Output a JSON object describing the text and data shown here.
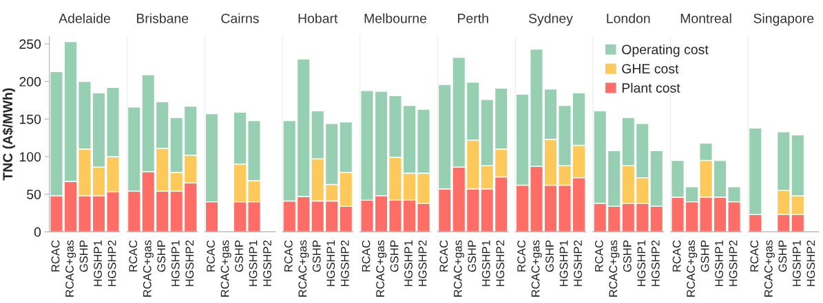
{
  "chart_data": [
    {
      "type": "bar",
      "stacked": true,
      "title": "Adelaide",
      "ylabel": "TNC (A$/MWh)",
      "categories": [
        "RCAC",
        "RCAC+gas",
        "GSHP",
        "HGSHP1",
        "HGSHP2"
      ],
      "ylim": [
        0,
        260
      ],
      "yticks": [
        0,
        50,
        100,
        150,
        200,
        250
      ],
      "series": [
        {
          "color": "#fe6e67",
          "values": [
            48,
            67,
            48,
            48,
            53
          ]
        },
        {
          "color": "#fec95b",
          "values": [
            null,
            null,
            62,
            38,
            47
          ]
        },
        {
          "color": "#97cfb3",
          "values": [
            165,
            186,
            90,
            99,
            92
          ]
        }
      ]
    },
    {
      "type": "bar",
      "stacked": true,
      "title": "Brisbane",
      "tick_labels": "x",
      "categories": [
        "RCAC",
        "RCAC+gas",
        "GSHP",
        "HGSHP1",
        "HGSHP2"
      ],
      "ylim": [
        0,
        260
      ],
      "yticks": [
        0,
        50,
        100,
        150,
        200,
        250
      ],
      "series": [
        {
          "color": "#fe6e67",
          "values": [
            54,
            80,
            54,
            54,
            65
          ]
        },
        {
          "color": "#fec95b",
          "values": [
            null,
            null,
            57,
            25,
            37
          ]
        },
        {
          "color": "#97cfb3",
          "values": [
            112,
            129,
            62,
            73,
            65
          ]
        }
      ]
    },
    {
      "type": "bar",
      "stacked": true,
      "title": "Cairns",
      "tick_labels": "x",
      "categories": [
        "RCAC",
        "RCAC+gas",
        "GSHP",
        "HGSHP1",
        "HGSHP2"
      ],
      "ylim": [
        0,
        260
      ],
      "yticks": [
        0,
        50,
        100,
        150,
        200,
        250
      ],
      "series": [
        {
          "color": "#fe6e67",
          "values": [
            40,
            null,
            40,
            40,
            null
          ]
        },
        {
          "color": "#fec95b",
          "values": [
            null,
            null,
            50,
            28,
            null
          ]
        },
        {
          "color": "#97cfb3",
          "values": [
            117,
            null,
            69,
            80,
            null
          ]
        }
      ]
    },
    {
      "type": "bar",
      "stacked": true,
      "title": "Hobart",
      "tick_labels": "x",
      "categories": [
        "RCAC",
        "RCAC+gas",
        "GSHP",
        "HGSHP1",
        "HGSHP2"
      ],
      "ylim": [
        0,
        260
      ],
      "yticks": [
        0,
        50,
        100,
        150,
        200,
        250
      ],
      "series": [
        {
          "color": "#fe6e67",
          "values": [
            41,
            47,
            41,
            41,
            34
          ]
        },
        {
          "color": "#fec95b",
          "values": [
            null,
            null,
            56,
            22,
            45
          ]
        },
        {
          "color": "#97cfb3",
          "values": [
            107,
            183,
            64,
            81,
            67
          ]
        }
      ]
    },
    {
      "type": "bar",
      "stacked": true,
      "title": "Melbourne",
      "tick_labels": "x",
      "categories": [
        "RCAC",
        "RCAC+gas",
        "GSHP",
        "HGSHP1",
        "HGSHP2"
      ],
      "ylim": [
        0,
        260
      ],
      "yticks": [
        0,
        50,
        100,
        150,
        200,
        250
      ],
      "series": [
        {
          "color": "#fe6e67",
          "values": [
            42,
            48,
            42,
            42,
            38
          ]
        },
        {
          "color": "#fec95b",
          "values": [
            null,
            null,
            57,
            36,
            40
          ]
        },
        {
          "color": "#97cfb3",
          "values": [
            146,
            139,
            82,
            90,
            85
          ]
        }
      ]
    },
    {
      "type": "bar",
      "stacked": true,
      "title": "Perth",
      "tick_labels": "x",
      "categories": [
        "RCAC",
        "RCAC+gas",
        "GSHP",
        "HGSHP1",
        "HGSHP2"
      ],
      "ylim": [
        0,
        260
      ],
      "yticks": [
        0,
        50,
        100,
        150,
        200,
        250
      ],
      "series": [
        {
          "color": "#fe6e67",
          "values": [
            57,
            86,
            57,
            57,
            73
          ]
        },
        {
          "color": "#fec95b",
          "values": [
            null,
            null,
            65,
            31,
            37
          ]
        },
        {
          "color": "#97cfb3",
          "values": [
            139,
            146,
            77,
            88,
            81
          ]
        }
      ]
    },
    {
      "type": "bar",
      "stacked": true,
      "title": "Sydney",
      "tick_labels": "x",
      "categories": [
        "RCAC",
        "RCAC+gas",
        "GSHP",
        "HGSHP1",
        "HGSHP2"
      ],
      "ylim": [
        0,
        260
      ],
      "yticks": [
        0,
        50,
        100,
        150,
        200,
        250
      ],
      "series": [
        {
          "color": "#fe6e67",
          "values": [
            62,
            87,
            62,
            62,
            72
          ]
        },
        {
          "color": "#fec95b",
          "values": [
            null,
            null,
            61,
            26,
            43
          ]
        },
        {
          "color": "#97cfb3",
          "values": [
            121,
            156,
            67,
            80,
            70
          ]
        }
      ]
    },
    {
      "type": "bar",
      "stacked": true,
      "title": "London",
      "tick_labels": "x",
      "legend": "top right",
      "categories": [
        "RCAC",
        "RCAC+gas",
        "GSHP",
        "HGSHP1",
        "HGSHP2"
      ],
      "ylim": [
        0,
        260
      ],
      "yticks": [
        0,
        50,
        100,
        150,
        200,
        250
      ],
      "series": [
        {
          "name": "Plant cost",
          "color": "#fe6e67",
          "values": [
            38,
            34,
            38,
            38,
            34
          ]
        },
        {
          "name": "GHE cost",
          "color": "#fec95b",
          "values": [
            null,
            null,
            50,
            34,
            null
          ]
        },
        {
          "name": "Operating cost",
          "color": "#97cfb3",
          "values": [
            123,
            74,
            64,
            72,
            74
          ]
        }
      ]
    },
    {
      "type": "bar",
      "stacked": true,
      "title": "Montreal",
      "tick_labels": "x",
      "categories": [
        "RCAC",
        "RCAC+gas",
        "GSHP",
        "HGSHP1",
        "HGSHP2"
      ],
      "ylim": [
        0,
        260
      ],
      "yticks": [
        0,
        50,
        100,
        150,
        200,
        250
      ],
      "series": [
        {
          "color": "#fe6e67",
          "values": [
            46,
            40,
            46,
            46,
            40
          ]
        },
        {
          "color": "#fec95b",
          "values": [
            null,
            null,
            49,
            null,
            null
          ]
        },
        {
          "color": "#97cfb3",
          "values": [
            49,
            20,
            23,
            49,
            20
          ]
        }
      ]
    },
    {
      "type": "bar",
      "stacked": true,
      "title": "Singapore",
      "tick_labels": "x",
      "categories": [
        "RCAC",
        "RCAC+gas",
        "GSHP",
        "HGSHP1",
        "HGSHP2"
      ],
      "ylim": [
        0,
        260
      ],
      "yticks": [
        0,
        50,
        100,
        150,
        200,
        250
      ],
      "series": [
        {
          "color": "#fe6e67",
          "values": [
            23,
            null,
            23,
            23,
            null
          ]
        },
        {
          "color": "#fec95b",
          "values": [
            null,
            null,
            32,
            25,
            null
          ]
        },
        {
          "color": "#97cfb3",
          "values": [
            115,
            null,
            78,
            81,
            null
          ]
        }
      ]
    }
  ]
}
